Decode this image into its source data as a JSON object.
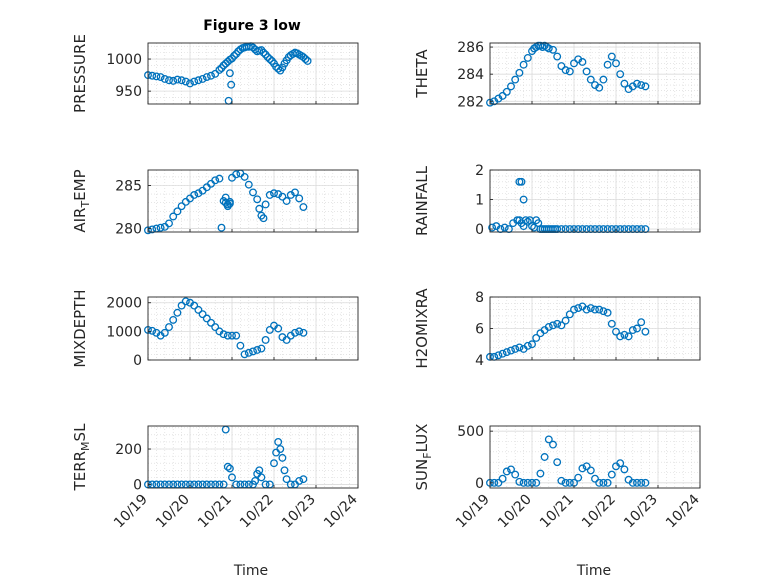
{
  "figure": {
    "title": "Figure 3 low",
    "xlabel": "Time",
    "x_ticks": [
      "10/19",
      "10/20",
      "10/21",
      "10/22",
      "10/23",
      "10/24"
    ],
    "x_tick_values": [
      "2023-10-19",
      "2023-10-20",
      "2023-10-21",
      "2023-10-22",
      "2023-10-23",
      "2023-10-24"
    ],
    "marker_color": "#0072BD",
    "grid": "minor dotted, major solid"
  },
  "chart_data": [
    {
      "type": "scatter",
      "ylabel": "PRESSURE",
      "ylim": [
        930,
        1025
      ],
      "yticks": [
        950,
        1000
      ],
      "x_units": "days after 10/19",
      "x": [
        0.0,
        0.1,
        0.2,
        0.3,
        0.4,
        0.5,
        0.6,
        0.7,
        0.8,
        0.9,
        1.0,
        1.1,
        1.2,
        1.3,
        1.4,
        1.5,
        1.6,
        1.7,
        1.75,
        1.8,
        1.85,
        1.9,
        1.95,
        2.0,
        2.05,
        2.1,
        2.15,
        2.2,
        2.25,
        2.3,
        2.35,
        2.4,
        2.45,
        2.5,
        2.55,
        2.6,
        2.65,
        2.7,
        2.75,
        2.8,
        2.85,
        2.9,
        2.95,
        3.0,
        3.05,
        3.1,
        3.15,
        3.2,
        3.25,
        3.3,
        3.35,
        3.4,
        3.45,
        3.5,
        3.55,
        3.6,
        3.65,
        3.7,
        3.75,
        3.8,
        1.92,
        1.95,
        1.98
      ],
      "y": [
        975,
        974,
        973,
        972,
        969,
        967,
        966,
        968,
        967,
        965,
        962,
        965,
        967,
        969,
        972,
        974,
        977,
        983,
        986,
        990,
        993,
        996,
        999,
        1001,
        1005,
        1008,
        1012,
        1015,
        1017,
        1018,
        1019,
        1019,
        1020,
        1018,
        1015,
        1012,
        1013,
        1014,
        1010,
        1007,
        1003,
        1000,
        997,
        993,
        988,
        985,
        982,
        987,
        993,
        998,
        1003,
        1006,
        1008,
        1010,
        1009,
        1007,
        1005,
        1003,
        1000,
        997,
        935,
        978,
        960
      ]
    },
    {
      "type": "scatter",
      "ylabel": "THETA",
      "ylim": [
        281.8,
        286.3
      ],
      "yticks": [
        282,
        284,
        286
      ],
      "x_units": "days after 10/19",
      "x": [
        0.0,
        0.1,
        0.2,
        0.3,
        0.4,
        0.5,
        0.6,
        0.7,
        0.8,
        0.9,
        1.0,
        1.05,
        1.1,
        1.15,
        1.2,
        1.25,
        1.3,
        1.35,
        1.4,
        1.5,
        1.6,
        1.7,
        1.8,
        1.9,
        2.0,
        2.1,
        2.2,
        2.3,
        2.4,
        2.5,
        2.6,
        2.7,
        2.8,
        2.9,
        3.0,
        3.1,
        3.2,
        3.3,
        3.4,
        3.5,
        3.6,
        3.7
      ],
      "y": [
        281.9,
        282.0,
        282.2,
        282.4,
        282.7,
        283.1,
        283.6,
        284.1,
        284.7,
        285.2,
        285.7,
        285.9,
        286.0,
        286.1,
        286.1,
        286.0,
        286.1,
        286.0,
        285.9,
        285.8,
        285.3,
        284.6,
        284.3,
        284.2,
        284.8,
        285.1,
        284.9,
        284.2,
        283.6,
        283.2,
        283.0,
        283.6,
        284.7,
        285.3,
        284.8,
        284.0,
        283.3,
        282.9,
        283.1,
        283.3,
        283.2,
        283.1
      ]
    },
    {
      "type": "scatter",
      "ylabel": "AIR_TEMP",
      "ylim": [
        279.6,
        286.8
      ],
      "yticks": [
        280,
        285
      ],
      "x_units": "days after 10/19",
      "x": [
        0.0,
        0.1,
        0.2,
        0.3,
        0.4,
        0.5,
        0.6,
        0.7,
        0.8,
        0.9,
        1.0,
        1.1,
        1.2,
        1.3,
        1.4,
        1.5,
        1.6,
        1.7,
        1.75,
        1.8,
        1.85,
        1.9,
        1.95,
        2.0,
        2.1,
        2.2,
        2.3,
        2.4,
        2.5,
        2.6,
        2.65,
        2.7,
        2.75,
        2.8,
        2.9,
        3.0,
        3.1,
        3.2,
        3.3,
        3.4,
        3.5,
        3.6,
        3.7,
        1.85,
        1.9,
        1.95
      ],
      "y": [
        279.8,
        279.9,
        280.0,
        280.1,
        280.2,
        280.6,
        281.4,
        282.0,
        282.6,
        283.1,
        283.5,
        283.9,
        284.1,
        284.4,
        284.8,
        285.2,
        285.6,
        285.8,
        280.1,
        283.2,
        283.6,
        282.8,
        283.1,
        285.9,
        286.3,
        286.4,
        286.0,
        285.1,
        284.2,
        283.4,
        282.3,
        281.5,
        281.2,
        282.8,
        283.9,
        284.1,
        284.0,
        283.7,
        283.2,
        283.9,
        284.2,
        283.5,
        282.5,
        283.0,
        282.6,
        282.9
      ]
    },
    {
      "type": "scatter",
      "ylabel": "RAINFALL",
      "ylim": [
        -0.1,
        2.0
      ],
      "yticks": [
        0,
        1,
        2
      ],
      "x_units": "days after 10/19",
      "x": [
        0.05,
        0.15,
        0.25,
        0.35,
        0.45,
        0.55,
        0.65,
        0.7,
        0.75,
        0.8,
        0.85,
        0.9,
        0.95,
        1.0,
        1.05,
        1.1,
        1.15,
        1.2,
        1.25,
        1.3,
        1.35,
        1.4,
        1.45,
        1.5,
        1.55,
        1.6,
        1.7,
        1.8,
        1.9,
        2.0,
        2.1,
        2.2,
        2.3,
        2.4,
        2.5,
        2.6,
        2.7,
        2.8,
        2.9,
        3.0,
        3.1,
        3.2,
        3.3,
        3.4,
        3.5,
        3.6,
        3.7,
        0.7,
        0.75,
        0.8
      ],
      "y": [
        0.05,
        0.1,
        0,
        0.05,
        0,
        0.2,
        0.3,
        0.3,
        0.2,
        0.1,
        0.3,
        0.25,
        0.3,
        0.1,
        0.05,
        0.3,
        0.2,
        0,
        0,
        0,
        0,
        0,
        0,
        0,
        0,
        0,
        0,
        0,
        0,
        0,
        0,
        0,
        0,
        0,
        0,
        0,
        0,
        0,
        0,
        0,
        0,
        0,
        0,
        0,
        0,
        0,
        0,
        1.6,
        1.6,
        1.0
      ]
    },
    {
      "type": "scatter",
      "ylabel": "MIXDEPTH",
      "ylim": [
        0,
        2200
      ],
      "yticks": [
        0,
        1000,
        2000
      ],
      "x_units": "days after 10/19",
      "x": [
        0.0,
        0.1,
        0.2,
        0.3,
        0.4,
        0.5,
        0.6,
        0.7,
        0.8,
        0.9,
        1.0,
        1.1,
        1.2,
        1.3,
        1.4,
        1.5,
        1.6,
        1.7,
        1.8,
        1.9,
        2.0,
        2.1,
        2.2,
        2.3,
        2.4,
        2.5,
        2.6,
        2.7,
        2.8,
        2.9,
        3.0,
        3.1,
        3.2,
        3.3,
        3.4,
        3.5,
        3.6,
        3.7
      ],
      "y": [
        1050,
        1020,
        950,
        850,
        950,
        1150,
        1400,
        1650,
        1900,
        2050,
        2000,
        1900,
        1750,
        1600,
        1450,
        1300,
        1150,
        1000,
        900,
        850,
        850,
        850,
        500,
        200,
        250,
        300,
        350,
        400,
        700,
        1050,
        1200,
        1100,
        800,
        700,
        850,
        950,
        1000,
        950
      ]
    },
    {
      "type": "scatter",
      "ylabel": "H2OMIXRA",
      "ylim": [
        4,
        8
      ],
      "yticks": [
        4,
        6,
        8
      ],
      "x_units": "days after 10/19",
      "x": [
        0.0,
        0.1,
        0.2,
        0.3,
        0.4,
        0.5,
        0.6,
        0.7,
        0.8,
        0.9,
        1.0,
        1.1,
        1.2,
        1.3,
        1.4,
        1.5,
        1.6,
        1.7,
        1.8,
        1.9,
        2.0,
        2.1,
        2.2,
        2.3,
        2.4,
        2.5,
        2.6,
        2.7,
        2.8,
        2.9,
        3.0,
        3.1,
        3.2,
        3.3,
        3.4,
        3.5,
        3.6,
        3.7
      ],
      "y": [
        4.2,
        4.2,
        4.3,
        4.4,
        4.5,
        4.6,
        4.7,
        4.8,
        4.7,
        4.9,
        5.0,
        5.4,
        5.7,
        5.9,
        6.1,
        6.2,
        6.3,
        6.2,
        6.5,
        6.9,
        7.2,
        7.3,
        7.4,
        7.2,
        7.3,
        7.2,
        7.2,
        7.1,
        7.0,
        6.3,
        5.8,
        5.5,
        5.6,
        5.5,
        5.9,
        6.0,
        6.4,
        5.8
      ]
    },
    {
      "type": "scatter",
      "ylabel": "TERR_MSL",
      "ylim": [
        -20,
        330
      ],
      "yticks": [
        0,
        200
      ],
      "x_units": "days after 10/19",
      "x": [
        0.0,
        0.1,
        0.2,
        0.3,
        0.4,
        0.5,
        0.6,
        0.7,
        0.8,
        0.9,
        1.0,
        1.1,
        1.2,
        1.3,
        1.4,
        1.5,
        1.6,
        1.7,
        1.8,
        1.85,
        1.9,
        1.95,
        2.0,
        2.1,
        2.2,
        2.3,
        2.4,
        2.5,
        2.55,
        2.6,
        2.65,
        2.7,
        2.8,
        2.9,
        3.0,
        3.05,
        3.1,
        3.15,
        3.2,
        3.25,
        3.3,
        3.4,
        3.5,
        3.6,
        3.7
      ],
      "y": [
        0,
        0,
        0,
        0,
        0,
        0,
        0,
        0,
        0,
        0,
        0,
        0,
        0,
        0,
        0,
        0,
        0,
        0,
        0,
        310,
        100,
        90,
        40,
        0,
        0,
        0,
        0,
        0,
        20,
        60,
        80,
        40,
        0,
        0,
        120,
        180,
        240,
        200,
        150,
        80,
        30,
        0,
        0,
        20,
        30
      ]
    },
    {
      "type": "scatter",
      "ylabel": "SUN_FLUX",
      "ylim": [
        -50,
        550
      ],
      "yticks": [
        0,
        500
      ],
      "x_units": "days after 10/19",
      "x": [
        0.0,
        0.1,
        0.2,
        0.3,
        0.4,
        0.5,
        0.6,
        0.7,
        0.8,
        0.9,
        1.0,
        1.1,
        1.2,
        1.3,
        1.4,
        1.5,
        1.6,
        1.7,
        1.8,
        1.9,
        2.0,
        2.1,
        2.2,
        2.3,
        2.4,
        2.5,
        2.6,
        2.7,
        2.8,
        2.9,
        3.0,
        3.1,
        3.2,
        3.3,
        3.4,
        3.5,
        3.6,
        3.7
      ],
      "y": [
        0,
        0,
        0,
        40,
        110,
        130,
        80,
        10,
        0,
        0,
        0,
        0,
        90,
        250,
        420,
        370,
        200,
        20,
        0,
        0,
        0,
        50,
        140,
        160,
        120,
        40,
        0,
        0,
        0,
        80,
        160,
        190,
        130,
        30,
        0,
        0,
        0,
        0
      ]
    }
  ]
}
